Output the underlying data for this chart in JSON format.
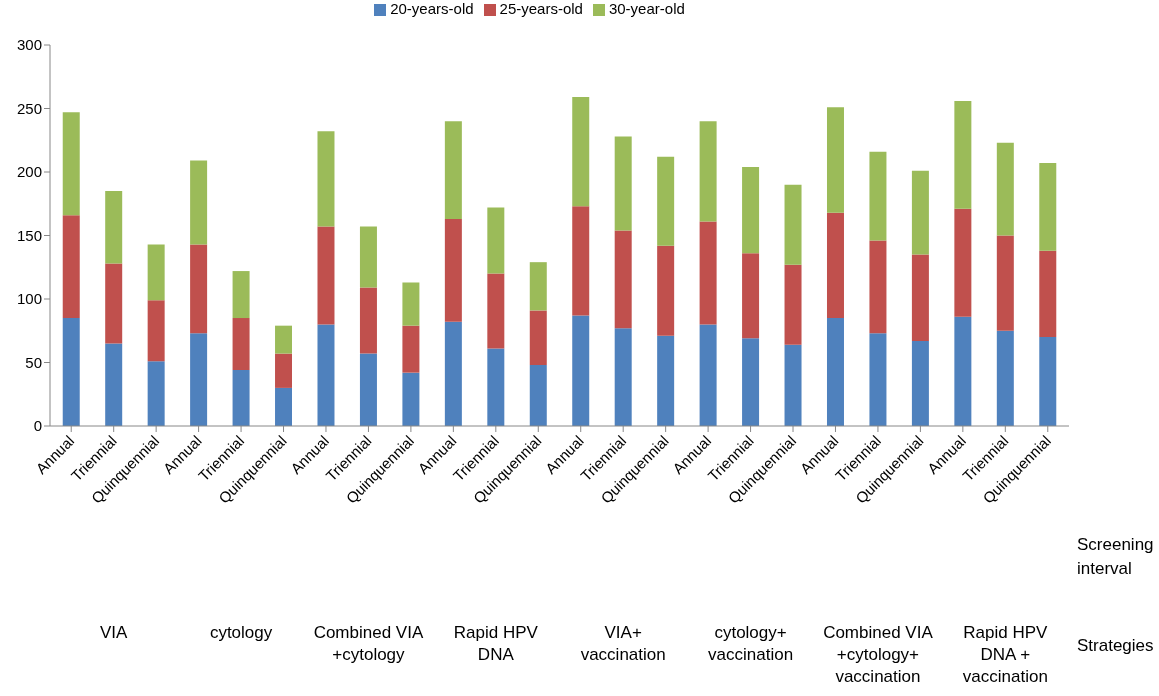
{
  "chart_data": {
    "type": "bar",
    "stacked": true,
    "categories": [
      "Annual",
      "Triennial",
      "Quinquennial",
      "Annual",
      "Triennial",
      "Quinquennial",
      "Annual",
      "Triennial",
      "Quinquennial",
      "Annual",
      "Triennial",
      "Quinquennial",
      "Annual",
      "Triennial",
      "Quinquennial",
      "Annual",
      "Triennial",
      "Quinquennial",
      "Annual",
      "Triennial",
      "Quinquennial",
      "Annual",
      "Triennial",
      "Quinquennial"
    ],
    "series": [
      {
        "name": "20-years-old",
        "color": "#4f81bd",
        "values": [
          85,
          65,
          51,
          73,
          44,
          30,
          80,
          57,
          42,
          82,
          61,
          48,
          87,
          77,
          71,
          80,
          69,
          64,
          85,
          73,
          67,
          86,
          75,
          70
        ]
      },
      {
        "name": "25-years-old",
        "color": "#c0504d",
        "values": [
          81,
          63,
          48,
          70,
          41,
          27,
          77,
          52,
          37,
          81,
          59,
          43,
          86,
          77,
          71,
          81,
          67,
          63,
          83,
          73,
          68,
          85,
          75,
          68
        ]
      },
      {
        "name": "30-year-old",
        "color": "#9bbb59",
        "values": [
          81,
          57,
          44,
          66,
          37,
          22,
          75,
          48,
          34,
          77,
          52,
          38,
          86,
          74,
          70,
          79,
          68,
          63,
          83,
          70,
          66,
          85,
          73,
          69
        ]
      }
    ],
    "ylim": [
      0,
      300
    ],
    "yticks": [
      0,
      50,
      100,
      150,
      200,
      250,
      300
    ],
    "grid": false,
    "legend": "top",
    "xlabel": "Screening interval",
    "annotations": [
      "Strategies",
      "VIA",
      "cytology",
      "Combined VIA\n+cytology",
      "Rapid HPV\nDNA",
      "VIA+\nvaccination",
      "cytology+\nvaccination",
      "Combined VIA\n+cytology+\nvaccination",
      "Rapid HPV\nDNA +\nvaccination"
    ]
  }
}
